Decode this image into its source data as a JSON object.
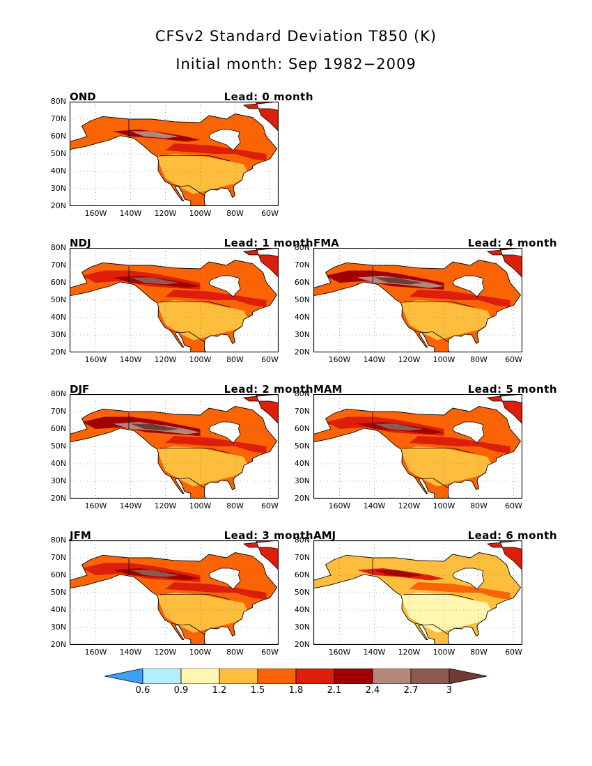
{
  "title": "CFSv2 Standard Deviation T850 (K)",
  "subtitle": "Initial month: Sep 1982−2009",
  "lat_labels": [
    "80N",
    "70N",
    "60N",
    "50N",
    "40N",
    "30N",
    "20N"
  ],
  "lon_labels": [
    "160W",
    "140W",
    "120W",
    "100W",
    "80W",
    "60W"
  ],
  "panels": [
    {
      "season": "OND",
      "lead": "Lead: 0 month",
      "col": 0,
      "row": 0,
      "level": 1
    },
    {
      "season": "NDJ",
      "lead": "Lead: 1 month",
      "col": 0,
      "row": 1,
      "level": 2
    },
    {
      "season": "DJF",
      "lead": "Lead: 2 month",
      "col": 0,
      "row": 2,
      "level": 3
    },
    {
      "season": "JFM",
      "lead": "Lead: 3 month",
      "col": 0,
      "row": 3,
      "level": 4
    },
    {
      "season": "FMA",
      "lead": "Lead: 4 month",
      "col": 1,
      "row": 1,
      "level": 3
    },
    {
      "season": "MAM",
      "lead": "Lead: 5 month",
      "col": 1,
      "row": 2,
      "level": 2
    },
    {
      "season": "AMJ",
      "lead": "Lead: 6 month",
      "col": 1,
      "row": 3,
      "level": 0
    }
  ],
  "colorbar": {
    "labels": [
      "0.6",
      "0.9",
      "1.2",
      "1.5",
      "1.8",
      "2.1",
      "2.4",
      "2.7",
      "3"
    ],
    "colors": [
      "#3fa0f5",
      "#b4eefa",
      "#fff7b0",
      "#fcbe3c",
      "#fa6405",
      "#dc1e0a",
      "#a00000",
      "#b4877d",
      "#8c5a50",
      "#6e3c32"
    ]
  }
}
